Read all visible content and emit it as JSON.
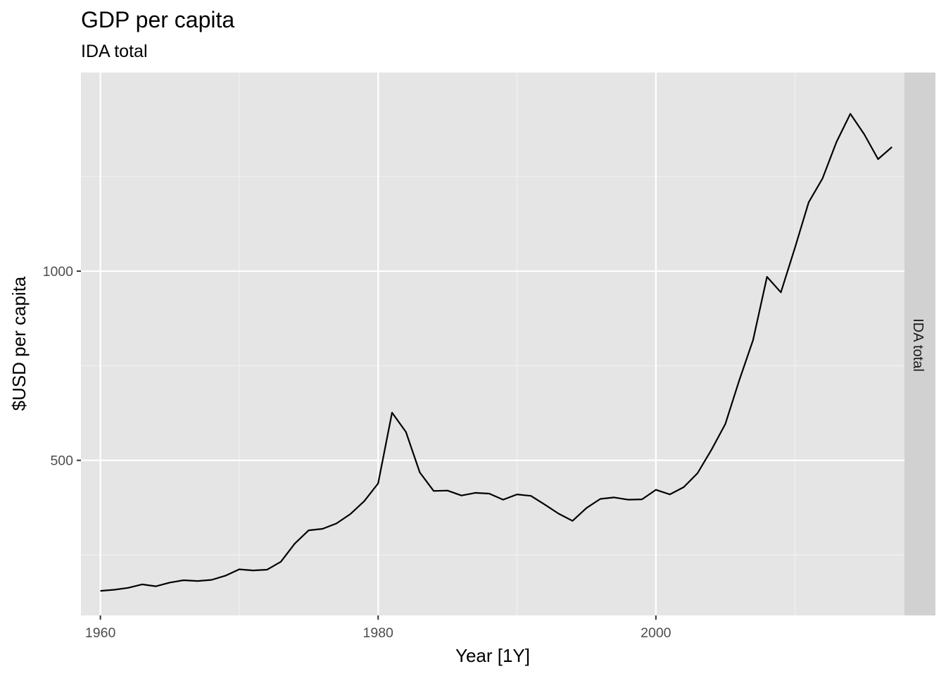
{
  "chart_data": {
    "type": "line",
    "title": "GDP per capita",
    "subtitle": "IDA total",
    "xlabel": "Year [1Y]",
    "ylabel": "$USD per capita",
    "facet_label": "IDA total",
    "xlim": [
      1958.6,
      2017.9
    ],
    "ylim": [
      90,
      1525
    ],
    "x_ticks": [
      1960,
      1980,
      2000
    ],
    "x_minor_ticks": [
      1970,
      1990,
      2010
    ],
    "y_ticks": [
      500,
      1000
    ],
    "y_minor_ticks": [
      250,
      750,
      1250
    ],
    "grid": true,
    "legend": "none",
    "colors": {
      "panel_background": "#e5e5e5",
      "grid_major": "#ffffff",
      "grid_minor": "#f2f2f2",
      "strip_background": "#d1d1d1",
      "line": "#000000",
      "tick_label": "#4d4d4d",
      "tick_mark": "#333333"
    },
    "series": [
      {
        "x": [
          1960,
          1961,
          1962,
          1963,
          1964,
          1965,
          1966,
          1967,
          1968,
          1969,
          1970,
          1971,
          1972,
          1973,
          1974,
          1975,
          1976,
          1977,
          1978,
          1979,
          1980,
          1981,
          1982,
          1983,
          1984,
          1985,
          1986,
          1987,
          1988,
          1989,
          1990,
          1991,
          1992,
          1993,
          1994,
          1995,
          1996,
          1997,
          1998,
          1999,
          2000,
          2001,
          2002,
          2003,
          2004,
          2005,
          2006,
          2007,
          2008,
          2009,
          2010,
          2011,
          2012,
          2013,
          2014,
          2015,
          2016,
          2017
        ],
        "values": [
          155,
          158,
          163,
          172,
          167,
          177,
          183,
          181,
          184,
          195,
          212,
          209,
          211,
          232,
          280,
          315,
          319,
          333,
          358,
          392,
          439,
          626,
          575,
          468,
          419,
          420,
          407,
          414,
          412,
          396,
          410,
          406,
          383,
          359,
          340,
          374,
          398,
          402,
          396,
          397,
          422,
          410,
          429,
          466,
          528,
          596,
          711,
          818,
          985,
          944,
          1060,
          1182,
          1245,
          1341,
          1416,
          1362,
          1296,
          1328
        ]
      }
    ]
  }
}
